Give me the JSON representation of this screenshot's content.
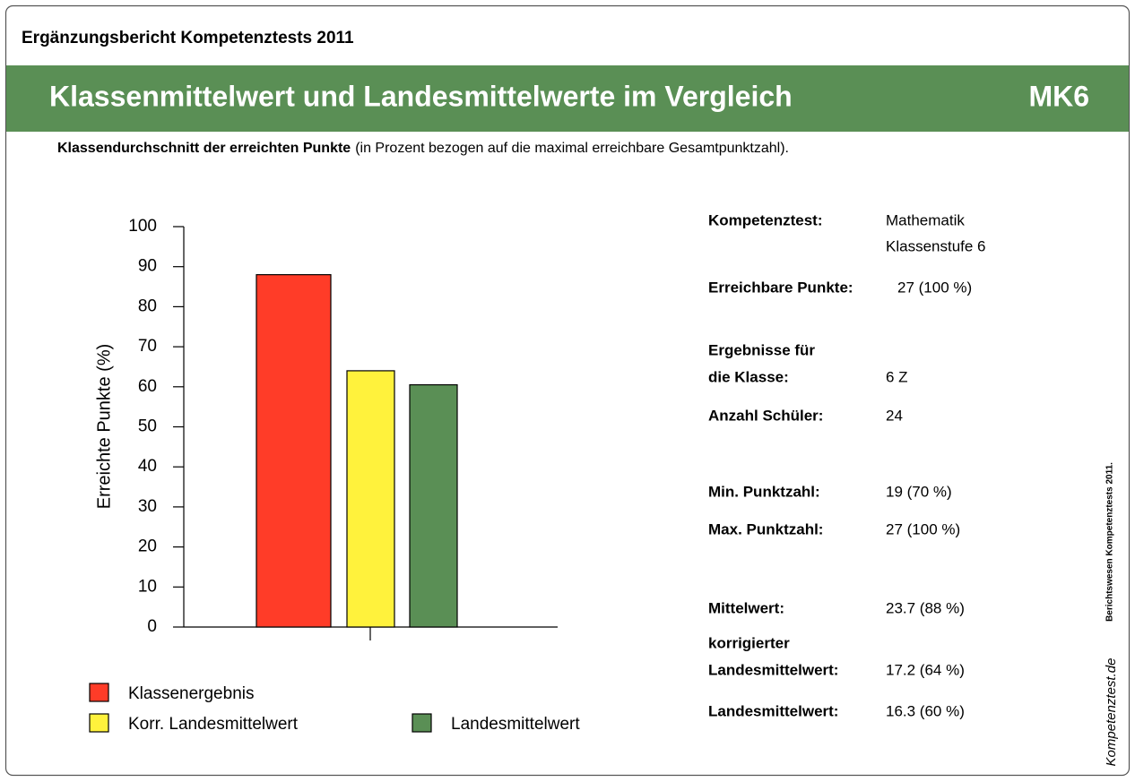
{
  "header": {
    "title": "Ergänzungsbericht Kompetenztests 2011"
  },
  "banner": {
    "title": "Klassenmittelwert und Landesmittelwerte im Vergleich",
    "code": "MK6"
  },
  "subtitle": {
    "bold": "Klassendurchschnitt der erreichten Punkte",
    "rest": "(in Prozent bezogen auf die maximal erreichbare Gesamtpunktzahl)."
  },
  "chart_data": {
    "type": "bar",
    "ylabel": "Erreichte Punkte (%)",
    "categories": [
      null
    ],
    "series": [
      {
        "name": "Klassenergebnis",
        "color": "#ff3c28",
        "values": [
          88
        ]
      },
      {
        "name": "Korr. Landesmittelwert",
        "color": "#fff23c",
        "values": [
          64
        ]
      },
      {
        "name": "Landesmittelwert",
        "color": "#5a8f55",
        "values": [
          60.5
        ]
      }
    ],
    "ylim": [
      0,
      100
    ],
    "yticks": [
      0,
      10,
      20,
      30,
      40,
      50,
      60,
      70,
      80,
      90,
      100
    ]
  },
  "info": {
    "rows": [
      {
        "label": [
          "Kompetenztest:"
        ],
        "value": [
          "Mathematik",
          "Klassenstufe 6"
        ]
      },
      {
        "label": [
          "Erreichbare Punkte:"
        ],
        "value": [
          "27 (100 %)"
        ]
      },
      {
        "label": [
          "Ergebnisse für",
          "die Klasse:"
        ],
        "value": [
          "6 Z"
        ]
      },
      {
        "label": [
          "Anzahl Schüler:"
        ],
        "value": [
          "24"
        ]
      },
      {
        "label": [
          "Min. Punktzahl:"
        ],
        "value": [
          "19 (70 %)"
        ]
      },
      {
        "label": [
          "Max. Punktzahl:"
        ],
        "value": [
          "27 (100 %)"
        ]
      },
      {
        "label": [
          "Mittelwert:"
        ],
        "value": [
          "23.7 (88 %)"
        ]
      },
      {
        "label": [
          "korrigierter",
          "Landesmittelwert:"
        ],
        "value": [
          "17.2 (64 %)"
        ]
      },
      {
        "label": [
          "Landesmittelwert:"
        ],
        "value": [
          "16.3 (60 %)"
        ]
      }
    ]
  },
  "side": {
    "note": "Berichtswesen Kompetenztests 2011.",
    "logo": "Kompetenztest.de"
  }
}
